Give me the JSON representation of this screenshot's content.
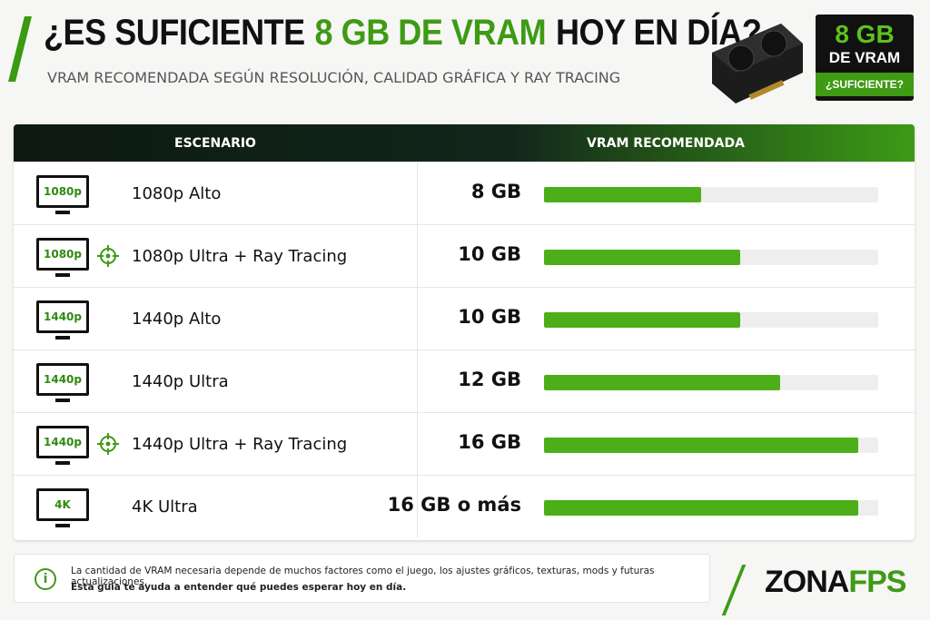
{
  "header": {
    "title": {
      "parts": [
        "¿ES SUFICIENTE",
        "8 GB DE VRAM",
        "HOY EN DÍA?"
      ]
    },
    "subtitle": "VRAM RECOMENDADA SEGÚN RESOLUCIÓN, CALIDAD GRÁFICA Y RAY TRACING"
  },
  "badge": {
    "line1": "8 GB",
    "line2": "DE VRAM",
    "line3": "¿SUFICIENTE?"
  },
  "table": {
    "columns": [
      "ESCENARIO",
      "VRAM RECOMENDADA"
    ],
    "xlim": [
      0,
      17
    ],
    "bar_color": "#4caf1a",
    "rows": [
      {
        "resolution": "1080p",
        "scenario": "1080p Alto",
        "crosshair": false,
        "vram": 8,
        "vram_label": "8 GB"
      },
      {
        "resolution": "1080p",
        "scenario": "1080p Ultra + Ray Tracing",
        "crosshair": true,
        "vram": 10,
        "vram_label": "10 GB"
      },
      {
        "resolution": "1440p",
        "scenario": "1440p Alto",
        "crosshair": false,
        "vram": 10,
        "vram_label": "10 GB"
      },
      {
        "resolution": "1440p",
        "scenario": "1440p Ultra",
        "crosshair": false,
        "vram": 12,
        "vram_label": "12 GB"
      },
      {
        "resolution": "1440p",
        "scenario": "1440p Ultra + Ray Tracing",
        "crosshair": true,
        "vram": 16,
        "vram_label": "16 GB"
      },
      {
        "resolution": "4K",
        "scenario": "4K Ultra",
        "crosshair": false,
        "vram": 16,
        "vram_label": "16 GB o más"
      }
    ]
  },
  "note": {
    "lines": [
      "La cantidad de VRAM necesaria depende de muchos factores como el juego, los ajustes gráficos, texturas, mods y futuras actualizaciones.",
      "Esta guía te ayuda a entender qué puedes esperar hoy en día."
    ]
  },
  "logo": {
    "part1": "ZONA",
    "part2": "FPS"
  }
}
